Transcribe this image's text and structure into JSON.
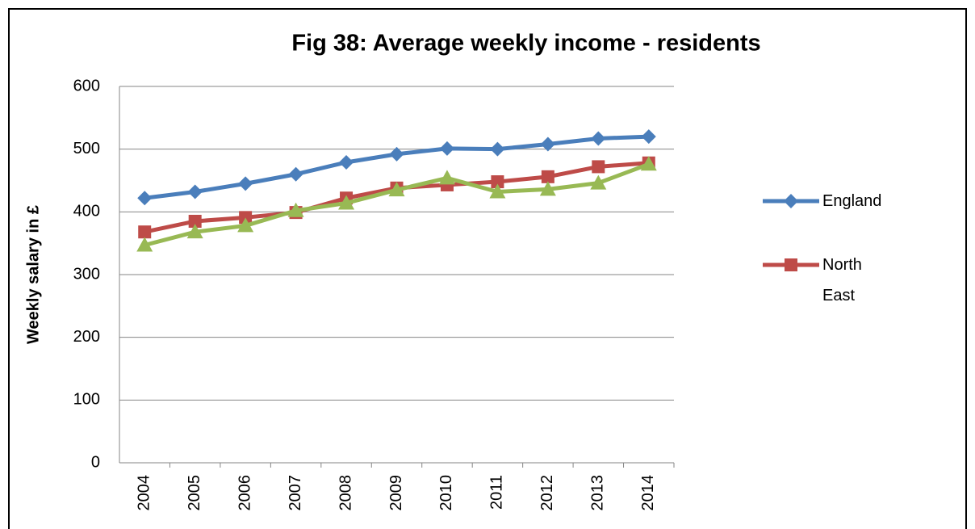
{
  "chart_data": {
    "type": "line",
    "title": "Fig 38: Average weekly income - residents",
    "y_label": "Weekly salary in £",
    "categories": [
      "2004",
      "2005",
      "2006",
      "2007",
      "2008",
      "2009",
      "2010",
      "2011",
      "2012",
      "2013",
      "2014"
    ],
    "series": [
      {
        "name": "England",
        "color": "#4a7ebb",
        "marker": "diamond",
        "values": [
          422,
          432,
          445,
          460,
          479,
          492,
          501,
          500,
          508,
          517,
          520
        ]
      },
      {
        "name": "North East",
        "color": "#be4b48",
        "marker": "square",
        "values": [
          368,
          385,
          391,
          399,
          422,
          438,
          443,
          448,
          456,
          472,
          478
        ]
      },
      {
        "color": "#98b954",
        "marker": "triangle",
        "values": [
          347,
          368,
          378,
          402,
          414,
          435,
          454,
          432,
          436,
          446,
          476
        ]
      }
    ],
    "ylim": [
      0,
      600
    ],
    "yticks": [
      0,
      100,
      200,
      300,
      400,
      500,
      600
    ],
    "grid": true
  }
}
